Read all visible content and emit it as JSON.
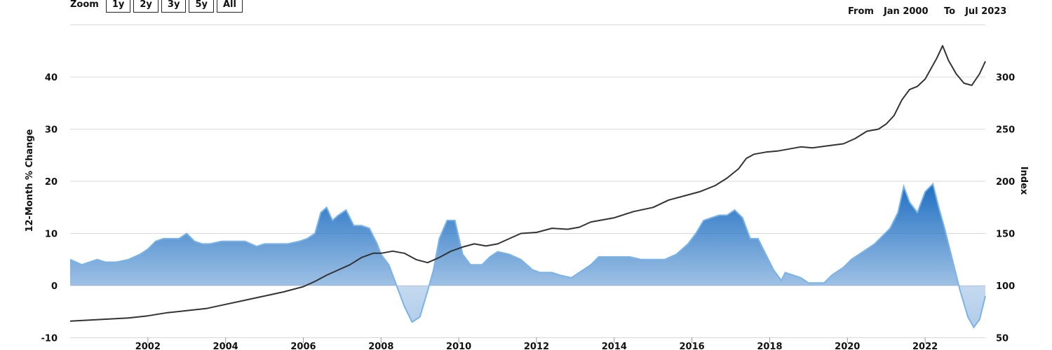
{
  "zoom": {
    "label": "Zoom",
    "buttons": [
      "1y",
      "2y",
      "3y",
      "5y",
      "All"
    ]
  },
  "range": {
    "from_label": "From",
    "from_value": "Jan 2000",
    "to_label": "To",
    "to_value": "Jul 2023"
  },
  "chart_data": {
    "type": "area",
    "title": "",
    "xlabel": "",
    "x_range": [
      2000.0,
      2023.55
    ],
    "x_ticks": [
      "2002",
      "2004",
      "2006",
      "2008",
      "2010",
      "2012",
      "2014",
      "2016",
      "2018",
      "2020",
      "2022"
    ],
    "left_axis": {
      "title": "12-Month % Change",
      "range": [
        -10,
        50
      ],
      "ticks": [
        -10,
        0,
        10,
        20,
        30,
        40
      ]
    },
    "right_axis": {
      "title": "Index",
      "range": [
        50,
        350
      ],
      "ticks": [
        50,
        100,
        150,
        200,
        250,
        300
      ]
    },
    "grid": true,
    "legend": "none",
    "series": [
      {
        "axis": "left",
        "kind": "area",
        "color": "#1f6fc2",
        "x": [
          2000.0,
          2000.3,
          2000.5,
          2000.7,
          2000.9,
          2001.2,
          2001.5,
          2001.8,
          2002.0,
          2002.2,
          2002.4,
          2002.6,
          2002.8,
          2003.0,
          2003.2,
          2003.4,
          2003.6,
          2003.9,
          2004.2,
          2004.5,
          2004.8,
          2005.0,
          2005.3,
          2005.6,
          2005.9,
          2006.1,
          2006.3,
          2006.45,
          2006.6,
          2006.75,
          2006.9,
          2007.1,
          2007.3,
          2007.5,
          2007.7,
          2007.9,
          2008.0,
          2008.2,
          2008.4,
          2008.6,
          2008.8,
          2009.0,
          2009.2,
          2009.35,
          2009.5,
          2009.7,
          2009.9,
          2010.1,
          2010.3,
          2010.45,
          2010.6,
          2010.8,
          2011.0,
          2011.3,
          2011.6,
          2011.9,
          2012.1,
          2012.4,
          2012.6,
          2012.9,
          2013.2,
          2013.4,
          2013.6,
          2013.9,
          2014.1,
          2014.4,
          2014.7,
          2015.0,
          2015.3,
          2015.6,
          2015.9,
          2016.1,
          2016.3,
          2016.5,
          2016.7,
          2016.9,
          2017.1,
          2017.3,
          2017.5,
          2017.7,
          2017.9,
          2018.1,
          2018.3,
          2018.4,
          2018.6,
          2018.8,
          2019.0,
          2019.2,
          2019.4,
          2019.6,
          2019.9,
          2020.1,
          2020.3,
          2020.5,
          2020.7,
          2020.9,
          2021.1,
          2021.3,
          2021.45,
          2021.6,
          2021.8,
          2022.0,
          2022.2,
          2022.35,
          2022.5,
          2022.7,
          2022.9,
          2023.1,
          2023.25,
          2023.4,
          2023.55
        ],
        "values": [
          5,
          4,
          4.5,
          5,
          4.5,
          4.5,
          5,
          6,
          7,
          8.5,
          9,
          9,
          9,
          10,
          8.5,
          8,
          8,
          8.5,
          8.5,
          8.5,
          7.5,
          8,
          8,
          8,
          8.5,
          9,
          10,
          14,
          15,
          12.5,
          13.5,
          14.5,
          11.5,
          11.5,
          11,
          8,
          6,
          4,
          0,
          -4,
          -7,
          -6,
          -1,
          3,
          9,
          12.5,
          12.5,
          6,
          4,
          4,
          4,
          5.5,
          6.5,
          6,
          5,
          3,
          2.5,
          2.5,
          2,
          1.5,
          3,
          4,
          5.5,
          5.5,
          5.5,
          5.5,
          5,
          5,
          5,
          6,
          8,
          10,
          12.5,
          13,
          13.5,
          13.5,
          14.5,
          13,
          9,
          9,
          6,
          3,
          1,
          2.5,
          2,
          1.5,
          0.5,
          0.5,
          0.5,
          2,
          3.5,
          5,
          6,
          7,
          8,
          9.5,
          11,
          14,
          19,
          16,
          14,
          18,
          19.5,
          15,
          11,
          5,
          -1,
          -6,
          -8,
          -6.5,
          -2
        ]
      },
      {
        "axis": "right",
        "kind": "line",
        "color": "#333333",
        "x": [
          2000.0,
          2000.5,
          2001.0,
          2001.5,
          2002.0,
          2002.5,
          2003.0,
          2003.5,
          2004.0,
          2004.5,
          2005.0,
          2005.5,
          2006.0,
          2006.3,
          2006.6,
          2006.9,
          2007.2,
          2007.5,
          2007.8,
          2008.0,
          2008.3,
          2008.6,
          2008.9,
          2009.2,
          2009.5,
          2009.8,
          2010.1,
          2010.4,
          2010.7,
          2011.0,
          2011.3,
          2011.6,
          2012.0,
          2012.4,
          2012.8,
          2013.1,
          2013.4,
          2013.7,
          2014.0,
          2014.5,
          2015.0,
          2015.4,
          2015.8,
          2016.2,
          2016.6,
          2016.9,
          2017.2,
          2017.4,
          2017.6,
          2017.9,
          2018.2,
          2018.5,
          2018.8,
          2019.1,
          2019.5,
          2019.9,
          2020.2,
          2020.5,
          2020.8,
          2021.0,
          2021.2,
          2021.4,
          2021.6,
          2021.8,
          2022.0,
          2022.15,
          2022.3,
          2022.45,
          2022.6,
          2022.8,
          2023.0,
          2023.2,
          2023.4,
          2023.55
        ],
        "values": [
          66,
          67,
          68,
          69,
          71,
          74,
          76,
          78,
          82,
          86,
          90,
          94,
          99,
          104,
          110,
          115,
          120,
          127,
          131,
          131,
          133,
          131,
          125,
          122,
          127,
          133,
          137,
          140,
          138,
          140,
          145,
          150,
          151,
          155,
          154,
          156,
          161,
          163,
          165,
          171,
          175,
          182,
          186,
          190,
          196,
          203,
          212,
          222,
          226,
          228,
          229,
          231,
          233,
          232,
          234,
          236,
          241,
          248,
          250,
          255,
          263,
          278,
          288,
          291,
          298,
          308,
          318,
          330,
          316,
          303,
          294,
          292,
          303,
          315
        ]
      }
    ]
  }
}
